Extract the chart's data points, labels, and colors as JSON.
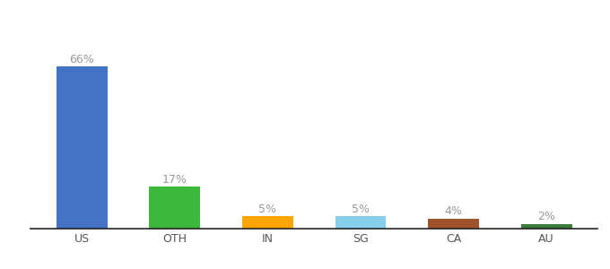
{
  "categories": [
    "US",
    "OTH",
    "IN",
    "SG",
    "CA",
    "AU"
  ],
  "values": [
    66,
    17,
    5,
    5,
    4,
    2
  ],
  "labels": [
    "66%",
    "17%",
    "5%",
    "5%",
    "4%",
    "2%"
  ],
  "bar_colors": [
    "#4472C4",
    "#3CB83C",
    "#FFA500",
    "#87CEEB",
    "#A0522D",
    "#3A7D3A"
  ],
  "background_color": "#ffffff",
  "ylim": [
    0,
    80
  ],
  "label_fontsize": 9,
  "tick_fontsize": 9,
  "label_color": "#999999",
  "tick_color": "#555555",
  "bar_width": 0.55
}
